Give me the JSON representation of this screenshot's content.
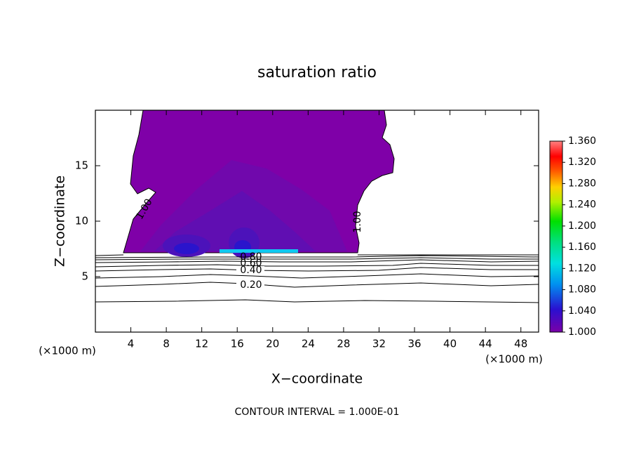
{
  "chart_data": {
    "type": "contour",
    "title": "saturation ratio",
    "xlabel": "X−coordinate",
    "ylabel": "Z−coordinate",
    "xunit_labels": [
      "(×1000 m)",
      "(×1000 m)"
    ],
    "xlim": [
      0,
      50
    ],
    "ylim": [
      0,
      20
    ],
    "xticks": [
      4,
      8,
      12,
      16,
      20,
      24,
      28,
      32,
      36,
      40,
      44,
      48
    ],
    "yticks": [
      5,
      10,
      15
    ],
    "colorbar": {
      "lim": [
        1.0,
        1.36
      ],
      "ticks": [
        {
          "value": 1.0,
          "label": "1.000"
        },
        {
          "value": 1.04,
          "label": "1.040"
        },
        {
          "value": 1.08,
          "label": "1.080"
        },
        {
          "value": 1.12,
          "label": "1.120"
        },
        {
          "value": 1.16,
          "label": "1.160"
        },
        {
          "value": 1.2,
          "label": "1.200"
        },
        {
          "value": 1.24,
          "label": "1.240"
        },
        {
          "value": 1.28,
          "label": "1.280"
        },
        {
          "value": 1.32,
          "label": "1.320"
        },
        {
          "value": 1.36,
          "label": "1.360"
        }
      ]
    },
    "contour_labels": [
      "1.00",
      "1.00",
      "0.80",
      "0.60",
      "0.40",
      "0.20"
    ],
    "footer": "CONTOUR INTERVAL = 1.000E-01"
  }
}
